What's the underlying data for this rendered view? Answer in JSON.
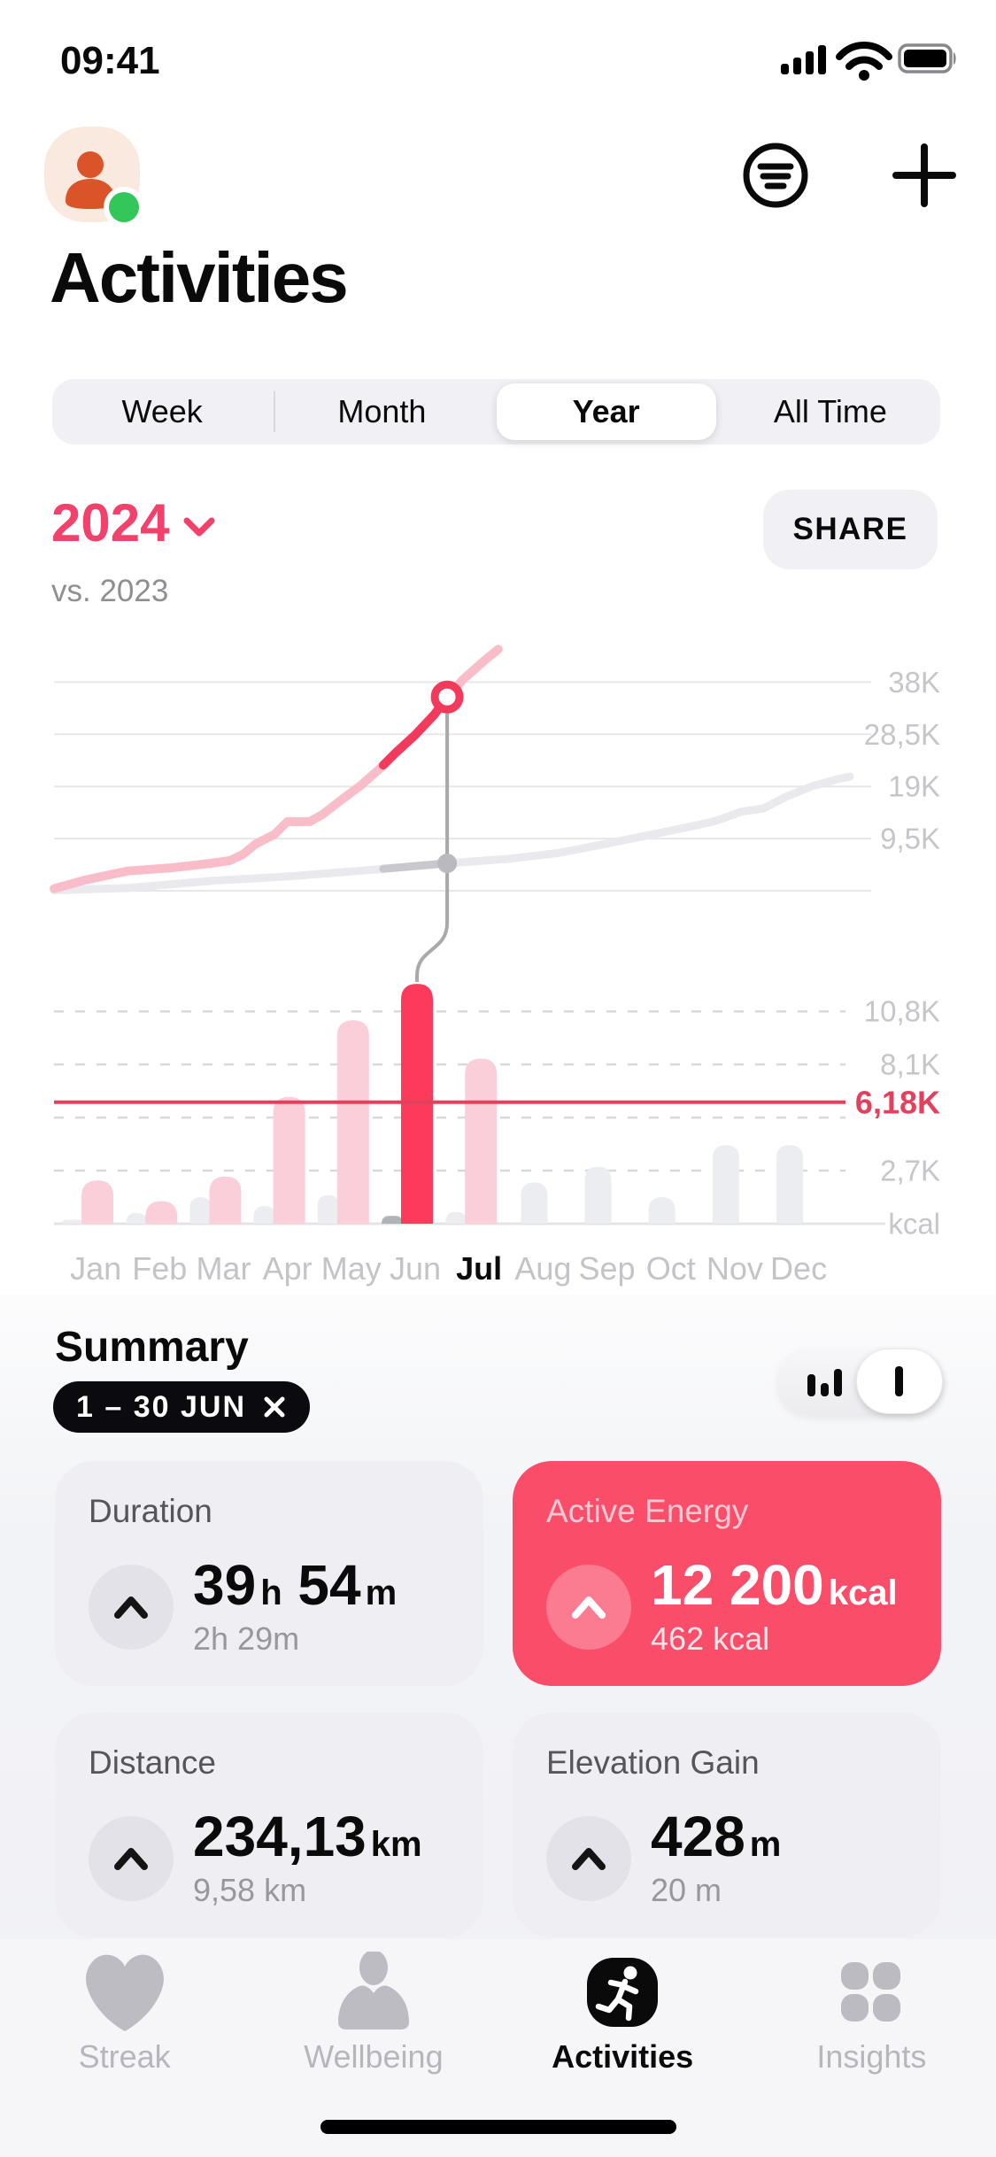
{
  "status_bar": {
    "time": "09:41"
  },
  "header": {
    "title": "Activities"
  },
  "tabs_period": {
    "options": [
      "Week",
      "Month",
      "Year",
      "All Time"
    ],
    "selected": "Year"
  },
  "year_selector": {
    "year": "2024",
    "comparison": "vs. 2023",
    "share_label": "SHARE"
  },
  "chart_data": [
    {
      "type": "line",
      "name": "cumulative-active-energy-year",
      "unit": "kcal",
      "ylim_k": [
        0,
        45
      ],
      "x_domain": "Jan-Dec (month fraction 0-12)",
      "gridlines": [
        {
          "v": 9.5,
          "label": "9,5K"
        },
        {
          "v": 19,
          "label": "19K"
        },
        {
          "v": 28.5,
          "label": "28,5K"
        },
        {
          "v": 38,
          "label": "38K"
        }
      ],
      "series": [
        {
          "name": "2024",
          "color": "#f8bdc9",
          "highlight_color": "#f23a5c",
          "highlight_from": 5.0,
          "points": [
            [
              -0.15,
              0.4
            ],
            [
              0.35,
              2.0
            ],
            [
              1.0,
              3.6
            ],
            [
              1.7,
              4.2
            ],
            [
              2.3,
              5.0
            ],
            [
              2.6,
              5.5
            ],
            [
              2.8,
              6.6
            ],
            [
              3.0,
              8.5
            ],
            [
              3.3,
              10.3
            ],
            [
              3.5,
              12.6
            ],
            [
              3.85,
              12.6
            ],
            [
              4.05,
              13.9
            ],
            [
              4.35,
              16.6
            ],
            [
              4.65,
              19.2
            ],
            [
              4.95,
              22.3
            ],
            [
              5.2,
              25.2
            ],
            [
              5.5,
              28.4
            ],
            [
              5.8,
              32.1
            ],
            [
              6.0,
              35.3
            ],
            [
              6.25,
              38.5
            ],
            [
              6.6,
              42.1
            ],
            [
              6.8,
              44.0
            ]
          ]
        },
        {
          "name": "2023",
          "color": "#e9e9ee",
          "highlight_color": "#c8c8ce",
          "highlight_from": 5.0,
          "points": [
            [
              -0.15,
              0.1
            ],
            [
              1.0,
              0.5
            ],
            [
              2.3,
              1.8
            ],
            [
              3.5,
              2.6
            ],
            [
              4.7,
              3.7
            ],
            [
              6.0,
              5.0
            ],
            [
              6.95,
              5.8
            ],
            [
              7.75,
              6.9
            ],
            [
              8.55,
              8.7
            ],
            [
              9.35,
              10.6
            ],
            [
              9.85,
              11.8
            ],
            [
              10.2,
              12.7
            ],
            [
              10.6,
              14.4
            ],
            [
              10.95,
              15.0
            ],
            [
              11.3,
              17.1
            ],
            [
              11.7,
              19.0
            ],
            [
              12.1,
              20.3
            ],
            [
              12.3,
              20.8
            ]
          ]
        }
      ],
      "marker": {
        "x": 6.0,
        "ring_value_k": 35.3,
        "dot_value_k": 5.0,
        "ring_color": "#f23a5c",
        "dot_color": "#b9b9bf",
        "connector_color": "#a8a8ad"
      }
    },
    {
      "type": "bar",
      "name": "monthly-active-energy",
      "unit": "kcal",
      "values_scale": "thousands of kcal",
      "categories": [
        "Jan",
        "Feb",
        "Mar",
        "Apr",
        "May",
        "Jun",
        "Jul",
        "Aug",
        "Sep",
        "Oct",
        "Nov",
        "Dec"
      ],
      "series": [
        {
          "name": "2024",
          "color": "#fbcfd9",
          "highlight_color": "#fb3a5c",
          "values": [
            2.2,
            1.15,
            2.4,
            6.45,
            10.35,
            12.2,
            8.4,
            null,
            null,
            null,
            null,
            null
          ]
        },
        {
          "name": "2023",
          "color": "#ecedf1",
          "highlight_color": "#b2b2b9",
          "values": [
            0.2,
            0.55,
            1.35,
            0.9,
            1.45,
            0.4,
            0.6,
            2.1,
            2.9,
            1.35,
            4.0,
            4.0
          ]
        }
      ],
      "gridlines": [
        {
          "v": 2.7,
          "label": "2,7K"
        },
        {
          "v": 5.4,
          "label": ""
        },
        {
          "v": 8.1,
          "label": "8,1K"
        },
        {
          "v": 10.8,
          "label": "10,8K"
        }
      ],
      "reference_line": {
        "v": 6.18,
        "label": "6,18K",
        "color": "#e2415e"
      },
      "highlight_index": 5,
      "bold_category": "Jul"
    }
  ],
  "summary": {
    "heading": "Summary",
    "range_chip": "1 – 30 JUN",
    "cards": [
      {
        "label": "Duration",
        "value_parts": [
          [
            "39",
            "num"
          ],
          [
            "h",
            "unit"
          ],
          [
            " 54",
            "num"
          ],
          [
            "m",
            "unit"
          ]
        ],
        "sub": "2h 29m",
        "accent": false
      },
      {
        "label": "Active Energy",
        "value_parts": [
          [
            "12 200",
            "num"
          ],
          [
            "kcal",
            "unit"
          ]
        ],
        "sub": "462 kcal",
        "accent": true
      },
      {
        "label": "Distance",
        "value_parts": [
          [
            "234,13",
            "num"
          ],
          [
            "km",
            "unit"
          ]
        ],
        "sub": "9,58 km",
        "accent": false
      },
      {
        "label": "Elevation Gain",
        "value_parts": [
          [
            "428",
            "num"
          ],
          [
            "m",
            "unit"
          ]
        ],
        "sub": "20 m",
        "accent": false
      }
    ]
  },
  "tab_bar": {
    "items": [
      {
        "label": "Streak"
      },
      {
        "label": "Wellbeing"
      },
      {
        "label": "Activities"
      },
      {
        "label": "Insights"
      }
    ],
    "active": "Activities"
  }
}
